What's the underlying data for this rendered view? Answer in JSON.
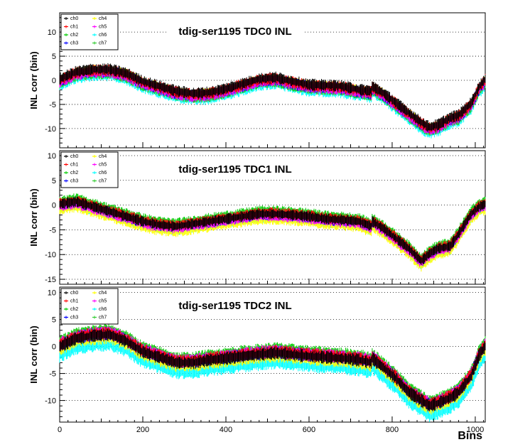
{
  "colors": {
    "ch0": "#000000",
    "ch1": "#ff0000",
    "ch2": "#00cc00",
    "ch3": "#0000ff",
    "ch4": "#ffff00",
    "ch5": "#ff00ff",
    "ch6": "#00ffff",
    "ch7": "#33cc33"
  },
  "chart_data": [
    {
      "type": "line",
      "title": "tdig-ser1195 TDC0 INL",
      "ylabel": "INL corr (bin)",
      "xlabel": "",
      "xlim": [
        0,
        1024
      ],
      "ylim": [
        -14,
        14
      ],
      "yticks": [
        10,
        5,
        0,
        -5,
        -10
      ],
      "xticks": [
        0,
        200,
        400,
        600,
        800,
        1000
      ],
      "legend": {
        "placement": "top-left",
        "entries": [
          "ch0",
          "ch1",
          "ch2",
          "ch3",
          "ch4",
          "ch5",
          "ch6",
          "ch7"
        ]
      },
      "base_curve": {
        "x": [
          0,
          40,
          80,
          120,
          160,
          200,
          240,
          280,
          320,
          360,
          400,
          440,
          480,
          520,
          560,
          600,
          640,
          680,
          720,
          750,
          752,
          780,
          810,
          840,
          870,
          890,
          910,
          940,
          960,
          990,
          1010,
          1024
        ],
        "y": [
          0,
          1.5,
          2,
          2,
          1.2,
          -0.5,
          -1.5,
          -2.5,
          -3,
          -2.8,
          -2,
          -1,
          0,
          0.3,
          -0.5,
          -1.2,
          -1.3,
          -1.5,
          -2.2,
          -2.5,
          -1.5,
          -3,
          -5,
          -7,
          -9,
          -10,
          -9.5,
          -8,
          -7.5,
          -5,
          -1.5,
          0
        ]
      },
      "channel_offsets": [
        0.3,
        0.1,
        -0.5,
        -0.2,
        0,
        -0.3,
        -1,
        -0.5
      ],
      "noise": 0.9
    },
    {
      "type": "line",
      "title": "tdig-ser1195 TDC1 INL",
      "ylabel": "INL corr (bin)",
      "xlabel": "",
      "xlim": [
        0,
        1024
      ],
      "ylim": [
        -16,
        11
      ],
      "yticks": [
        10,
        5,
        0,
        -5,
        -10,
        -15
      ],
      "xticks": [
        0,
        200,
        400,
        600,
        800,
        1000
      ],
      "legend": {
        "placement": "top-left",
        "entries": [
          "ch0",
          "ch1",
          "ch2",
          "ch3",
          "ch4",
          "ch5",
          "ch6",
          "ch7"
        ]
      },
      "base_curve": {
        "x": [
          0,
          40,
          80,
          120,
          160,
          200,
          240,
          280,
          320,
          360,
          400,
          440,
          480,
          520,
          560,
          600,
          640,
          680,
          720,
          750,
          752,
          780,
          810,
          840,
          870,
          890,
          910,
          940,
          960,
          990,
          1010,
          1024
        ],
        "y": [
          0,
          0.5,
          -0.5,
          -1.5,
          -2.5,
          -3.5,
          -4.2,
          -4.5,
          -4,
          -3.5,
          -3,
          -2.5,
          -2,
          -2,
          -2.2,
          -2.5,
          -3,
          -3.2,
          -3.5,
          -4.5,
          -3.5,
          -5,
          -7,
          -9,
          -11.5,
          -10,
          -9,
          -8.5,
          -6,
          -2,
          -0.5,
          0
        ]
      },
      "channel_offsets": [
        0.2,
        0.4,
        0.8,
        0,
        -0.9,
        -0.2,
        -0.5,
        0.5
      ],
      "noise": 0.8
    },
    {
      "type": "line",
      "title": "tdig-ser1195 TDC2 INL",
      "ylabel": "INL corr (bin)",
      "xlabel": "Bins",
      "xlim": [
        0,
        1024
      ],
      "ylim": [
        -14,
        11
      ],
      "yticks": [
        10,
        5,
        0,
        -5,
        -10
      ],
      "xticks": [
        0,
        200,
        400,
        600,
        800,
        1000
      ],
      "legend": {
        "placement": "top-left",
        "entries": [
          "ch0",
          "ch1",
          "ch2",
          "ch3",
          "ch4",
          "ch5",
          "ch6",
          "ch7"
        ]
      },
      "base_curve": {
        "x": [
          0,
          40,
          80,
          120,
          160,
          200,
          240,
          280,
          320,
          360,
          400,
          440,
          480,
          520,
          560,
          600,
          640,
          680,
          720,
          750,
          752,
          780,
          810,
          840,
          870,
          890,
          910,
          940,
          960,
          990,
          1010,
          1024
        ],
        "y": [
          0,
          1.5,
          2,
          2.2,
          1,
          -1,
          -2,
          -3,
          -3,
          -2.5,
          -2.2,
          -1.8,
          -1.5,
          -1.2,
          -1.5,
          -1.8,
          -2,
          -2.2,
          -2.5,
          -3,
          -2.2,
          -4,
          -6,
          -8.5,
          -10,
          -11,
          -10.5,
          -9.5,
          -8.5,
          -5.5,
          -1.5,
          0
        ]
      },
      "channel_offsets": [
        0,
        0.3,
        0.8,
        0.2,
        -0.5,
        0.4,
        -1.8,
        0.6
      ],
      "noise": 0.9
    }
  ]
}
